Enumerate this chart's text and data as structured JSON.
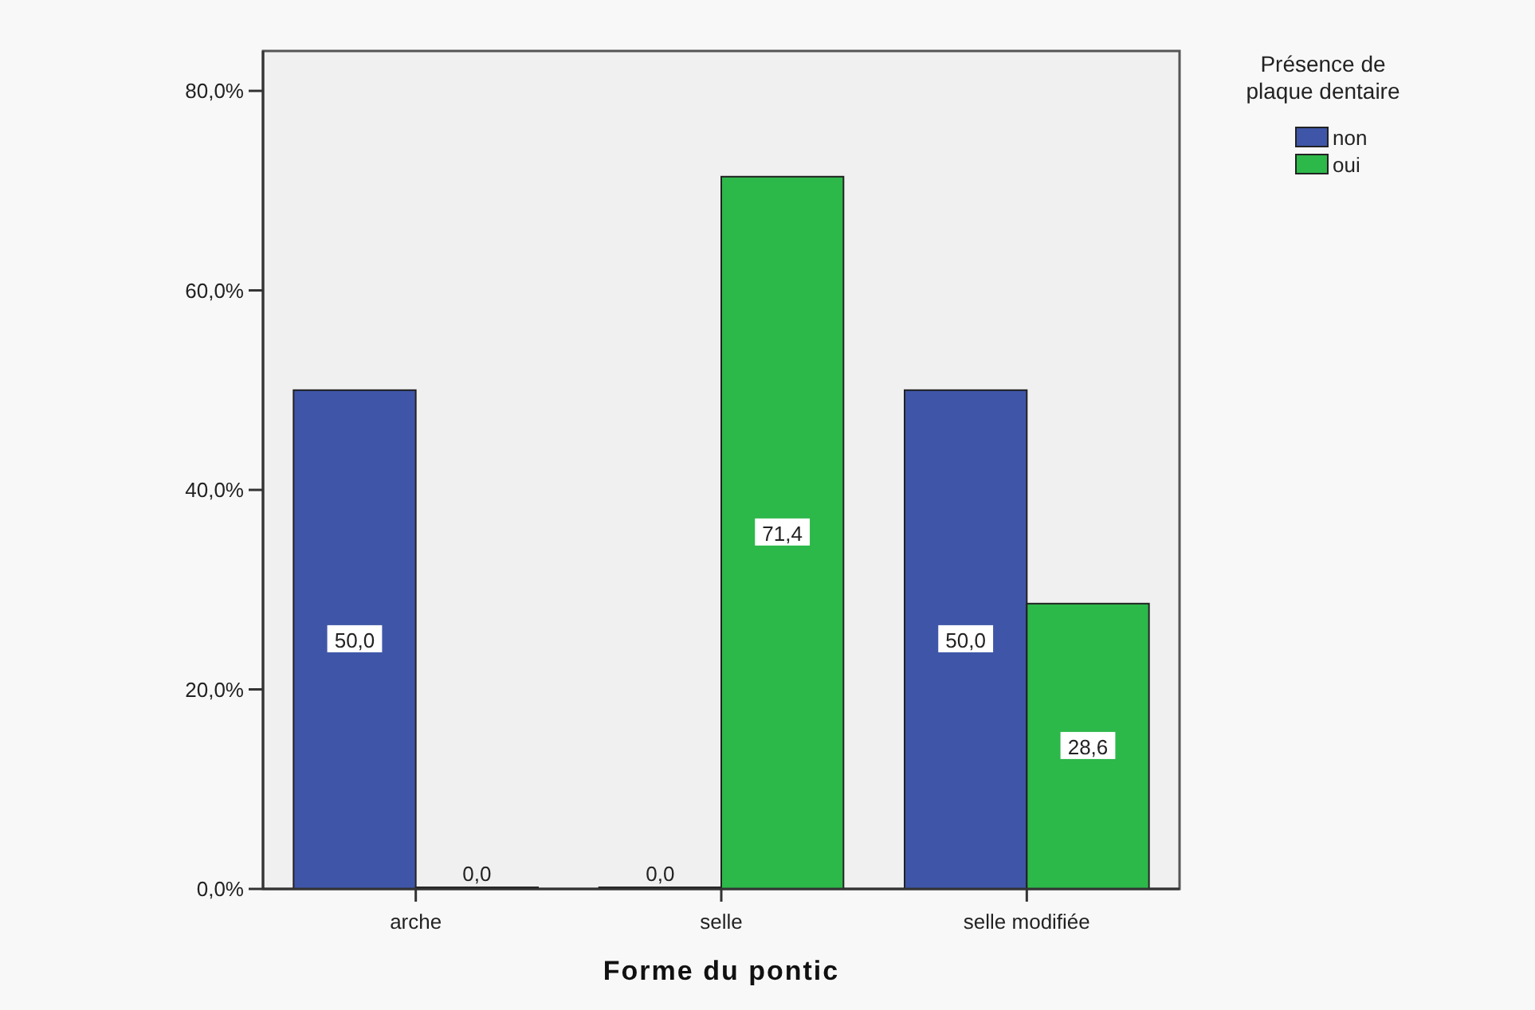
{
  "chart_data": {
    "type": "bar",
    "xlabel": "Forme du pontic",
    "legend_title": "Présence de plaque dentaire",
    "legend": "top right",
    "categories": [
      "arche",
      "selle",
      "selle modifiée"
    ],
    "series": [
      {
        "name": "non",
        "color": "#3f56a8",
        "values": [
          50.0,
          0.0,
          50.0
        ],
        "value_labels": [
          "50,0",
          "0,0",
          "50,0"
        ]
      },
      {
        "name": "oui",
        "color": "#2db84a",
        "values": [
          0.0,
          71.4,
          28.6
        ],
        "value_labels": [
          "0,0",
          "71,4",
          "28,6"
        ]
      }
    ],
    "ylim": [
      0,
      84
    ],
    "yticks": [
      {
        "value": 0,
        "label": "0,0%"
      },
      {
        "value": 20,
        "label": "20,0%"
      },
      {
        "value": 40,
        "label": "40,0%"
      },
      {
        "value": 60,
        "label": "60,0%"
      },
      {
        "value": 80,
        "label": "80,0%"
      }
    ],
    "grid": false
  }
}
